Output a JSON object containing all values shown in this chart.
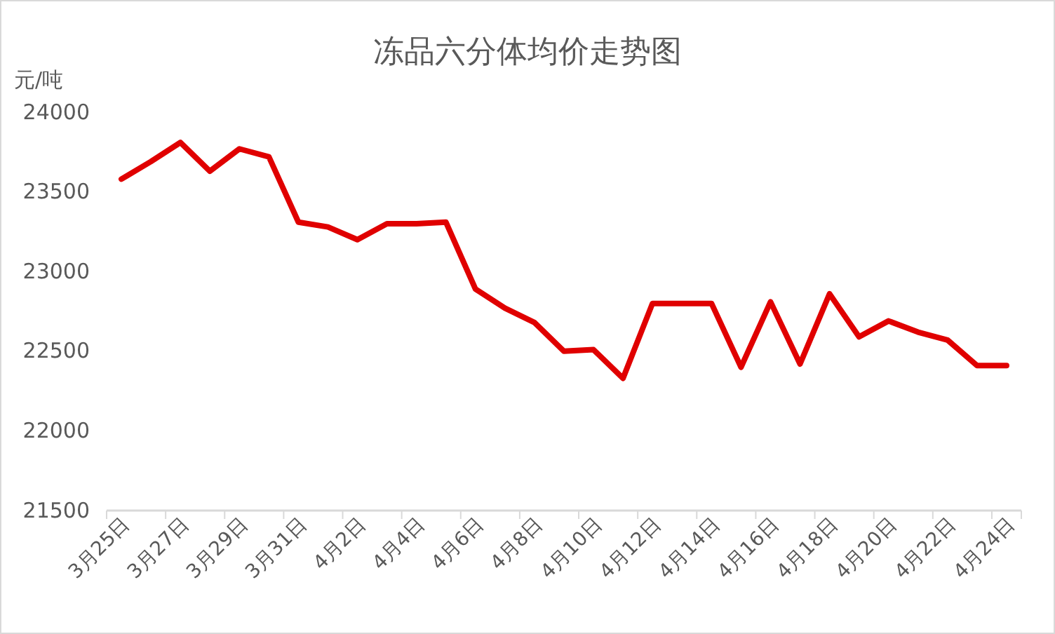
{
  "chart_data": {
    "type": "line",
    "title": "冻品六分体均价走势图",
    "ylabel": "元/吨",
    "categories": [
      "3月25日",
      null,
      "3月27日",
      null,
      "3月29日",
      null,
      "3月31日",
      null,
      "4月2日",
      null,
      "4月4日",
      null,
      "4月6日",
      null,
      "4月8日",
      null,
      "4月10日",
      null,
      "4月12日",
      null,
      "4月14日",
      null,
      "4月16日",
      null,
      "4月18日",
      null,
      "4月20日",
      null,
      "4月22日",
      null,
      "4月24日"
    ],
    "series": [
      {
        "color": "#e00000",
        "values": [
          23580,
          23690,
          23810,
          23630,
          23770,
          23720,
          23310,
          23280,
          23200,
          23300,
          23300,
          23310,
          22890,
          22770,
          22680,
          22500,
          22510,
          22330,
          22800,
          22800,
          22800,
          22400,
          22810,
          22420,
          22860,
          22590,
          22690,
          22620,
          22570,
          22410,
          22410
        ]
      }
    ],
    "ylim": [
      21500,
      24000
    ],
    "yticks": [
      21500,
      22000,
      22500,
      23000,
      23500,
      24000
    ],
    "grid": false,
    "marker": "none",
    "line_style": "solid"
  }
}
